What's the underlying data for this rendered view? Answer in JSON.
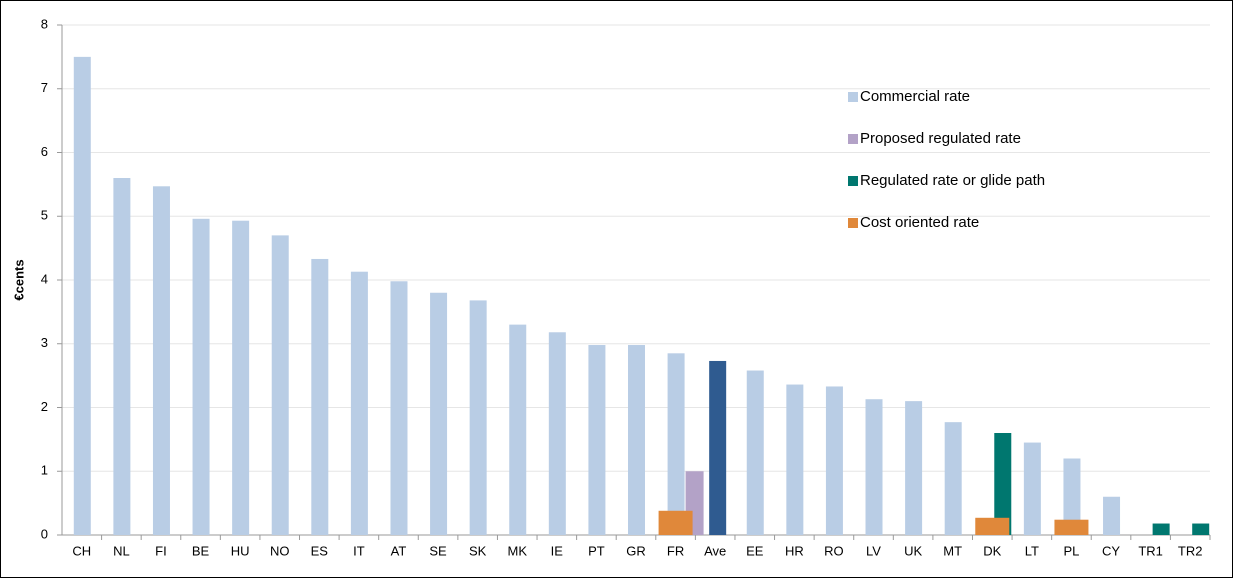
{
  "chart_data": {
    "type": "bar",
    "y_label": "€cents",
    "categories": [
      "CH",
      "NL",
      "FI",
      "BE",
      "HU",
      "NO",
      "ES",
      "IT",
      "AT",
      "SE",
      "SK",
      "MK",
      "IE",
      "PT",
      "GR",
      "FR",
      "Ave",
      "EE",
      "HR",
      "RO",
      "LV",
      "UK",
      "MT",
      "DK",
      "LT",
      "PL",
      "CY",
      "TR1",
      "TR2"
    ],
    "series": [
      {
        "name": "Commercial rate",
        "color": "#b9cde5",
        "values": [
          7.5,
          5.6,
          5.47,
          4.96,
          4.93,
          4.7,
          4.33,
          4.13,
          3.98,
          3.8,
          3.68,
          3.3,
          3.18,
          2.98,
          2.98,
          2.85,
          null,
          2.58,
          2.36,
          2.33,
          2.13,
          2.1,
          1.77,
          null,
          1.45,
          1.2,
          0.6,
          null,
          null
        ]
      },
      {
        "color": "#2f5b90",
        "values": [
          null,
          null,
          null,
          null,
          null,
          null,
          null,
          null,
          null,
          null,
          null,
          null,
          null,
          null,
          null,
          null,
          2.73,
          null,
          null,
          null,
          null,
          null,
          null,
          null,
          null,
          null,
          null,
          null,
          null
        ]
      },
      {
        "name": "Proposed regulated rate",
        "color": "#b3a2c7",
        "values": [
          null,
          null,
          null,
          null,
          null,
          null,
          null,
          null,
          null,
          null,
          null,
          null,
          null,
          null,
          null,
          1.0,
          null,
          null,
          null,
          null,
          null,
          null,
          null,
          null,
          null,
          null,
          null,
          null,
          null
        ]
      },
      {
        "name": "Regulated rate or glide path",
        "color": "#00776f",
        "values": [
          null,
          null,
          null,
          null,
          null,
          null,
          null,
          null,
          null,
          null,
          null,
          null,
          null,
          null,
          null,
          null,
          null,
          null,
          null,
          null,
          null,
          null,
          null,
          1.6,
          null,
          null,
          null,
          0.18,
          0.18
        ]
      },
      {
        "name": "Cost oriented rate",
        "color": "#e0883a",
        "values": [
          null,
          null,
          null,
          null,
          null,
          null,
          null,
          null,
          null,
          null,
          null,
          null,
          null,
          null,
          null,
          0.38,
          null,
          null,
          null,
          null,
          null,
          null,
          null,
          0.27,
          null,
          0.24,
          null,
          null,
          null
        ]
      }
    ],
    "ylim": [
      0,
      8
    ],
    "yticks": [
      0,
      1,
      2,
      3,
      4,
      5,
      6,
      7,
      8
    ],
    "grid": true
  }
}
